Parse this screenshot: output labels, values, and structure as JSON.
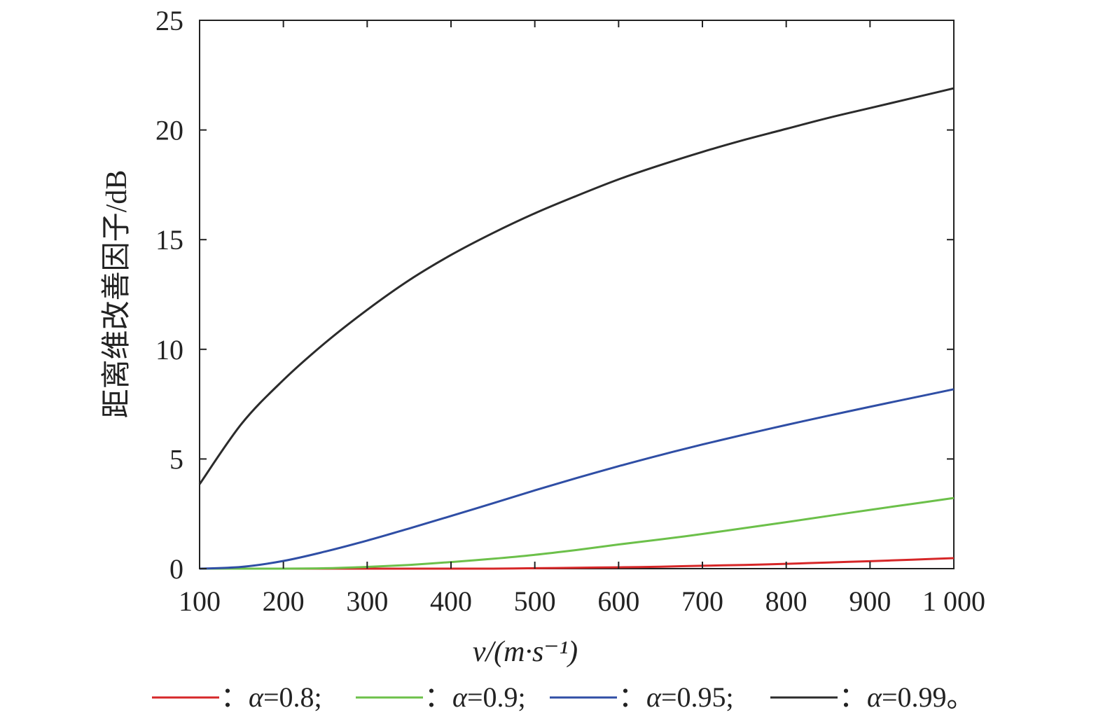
{
  "chart_data": {
    "type": "line",
    "title": "",
    "xlabel": "v/(m·s⁻¹)",
    "ylabel": "距离维改善因子/dB",
    "xlim": [
      100,
      1000
    ],
    "ylim": [
      0,
      25
    ],
    "xticks": [
      100,
      200,
      300,
      400,
      500,
      600,
      700,
      800,
      900,
      1000
    ],
    "xtick_labels": [
      "100",
      "200",
      "300",
      "400",
      "500",
      "600",
      "700",
      "800",
      "900",
      "1 000"
    ],
    "yticks": [
      0,
      5,
      10,
      15,
      20,
      25
    ],
    "ytick_labels": [
      "0",
      "5",
      "10",
      "15",
      "20",
      "25"
    ],
    "grid": false,
    "legend_position": "bottom",
    "x": [
      100,
      150,
      200,
      250,
      300,
      350,
      400,
      450,
      500,
      550,
      600,
      650,
      700,
      750,
      800,
      850,
      900,
      950,
      1000
    ],
    "series": [
      {
        "legend_prefix": "：",
        "legend_symbol": "α",
        "legend_value": "=0.8;",
        "color": "#d62728",
        "values": [
          0,
          0,
          0,
          0,
          0,
          0,
          0,
          0,
          0.02,
          0.04,
          0.06,
          0.09,
          0.13,
          0.17,
          0.22,
          0.28,
          0.34,
          0.41,
          0.48
        ]
      },
      {
        "legend_prefix": "：",
        "legend_symbol": "α",
        "legend_value": "=0.9;",
        "color": "#6cc04a",
        "values": [
          0,
          0,
          0,
          0.02,
          0.08,
          0.17,
          0.3,
          0.45,
          0.63,
          0.85,
          1.1,
          1.33,
          1.58,
          1.85,
          2.12,
          2.4,
          2.68,
          2.95,
          3.22
        ]
      },
      {
        "legend_prefix": "：",
        "legend_symbol": "α",
        "legend_value": "=0.95;",
        "color": "#2f4ea5",
        "values": [
          0,
          0.08,
          0.35,
          0.78,
          1.28,
          1.83,
          2.4,
          2.98,
          3.57,
          4.13,
          4.67,
          5.18,
          5.66,
          6.11,
          6.55,
          6.97,
          7.38,
          7.78,
          8.18
        ]
      },
      {
        "legend_prefix": "：",
        "legend_symbol": "α",
        "legend_value": "=0.99。",
        "color": "#2b2b2b",
        "values": [
          3.85,
          6.6,
          8.6,
          10.3,
          11.8,
          13.15,
          14.3,
          15.3,
          16.2,
          17.0,
          17.75,
          18.4,
          19.0,
          19.55,
          20.05,
          20.55,
          21.0,
          21.45,
          21.9
        ]
      }
    ]
  }
}
